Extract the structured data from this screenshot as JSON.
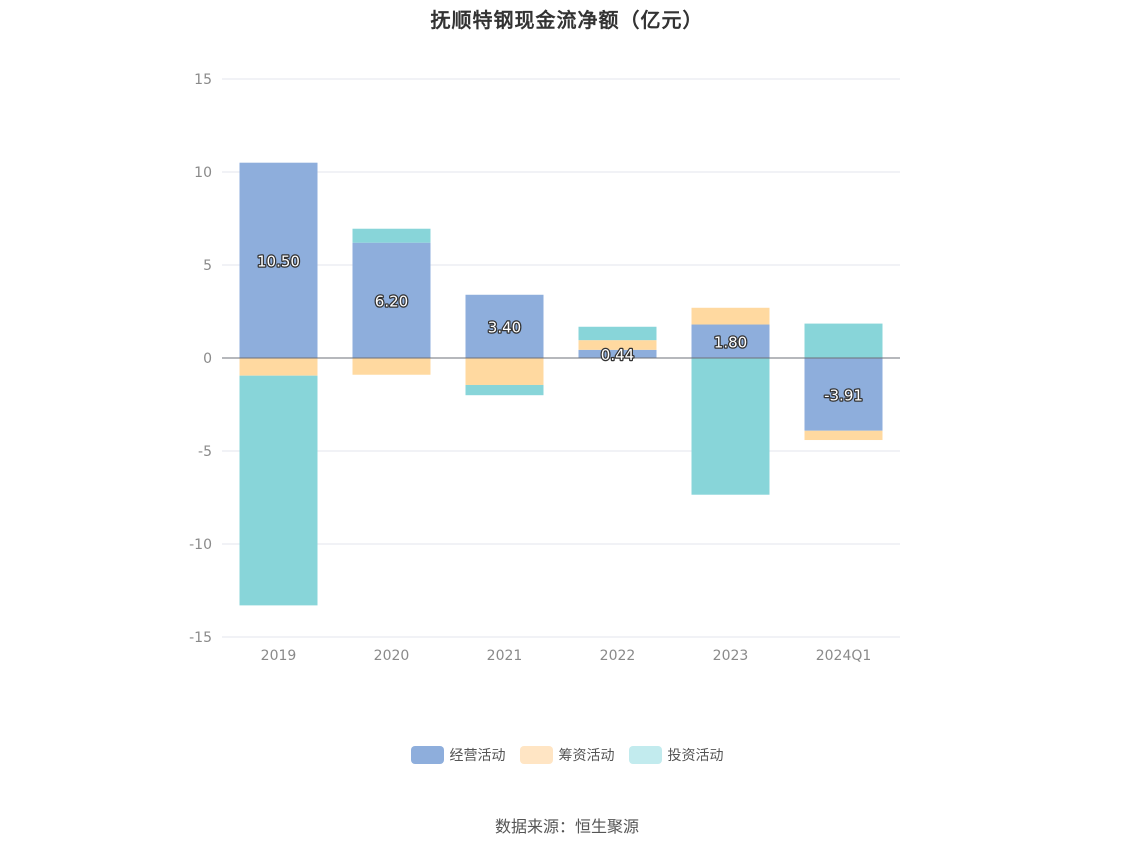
{
  "chart_data": {
    "type": "bar",
    "stacked": true,
    "title": "抚顺特钢现金流净额（亿元）",
    "categories": [
      "2019",
      "2020",
      "2021",
      "2022",
      "2023",
      "2024Q1"
    ],
    "series": [
      {
        "name": "经营活动",
        "color": "#8eaedc",
        "legend_color": "#8eaedc",
        "values": [
          10.5,
          6.2,
          3.4,
          0.44,
          1.8,
          -3.91
        ]
      },
      {
        "name": "筹资活动",
        "color": "#ffd9a0",
        "legend_color": "#ffe5c4",
        "values": [
          -0.95,
          -0.9,
          -1.45,
          0.52,
          0.9,
          -0.5
        ]
      },
      {
        "name": "投资活动",
        "color": "#88d5d9",
        "legend_color": "#c2ebee",
        "values": [
          -12.35,
          0.75,
          -0.55,
          0.72,
          -7.35,
          1.85
        ]
      }
    ],
    "data_labels": [
      "10.50",
      "6.20",
      "3.40",
      "0.44",
      "1.80",
      "-3.91"
    ],
    "y_ticks": [
      15,
      10,
      5,
      0,
      -5,
      -10,
      -15
    ],
    "ylim": [
      -15,
      15
    ],
    "grid": true,
    "legend_position": "bottom"
  },
  "source_text": "数据来源：恒生聚源"
}
